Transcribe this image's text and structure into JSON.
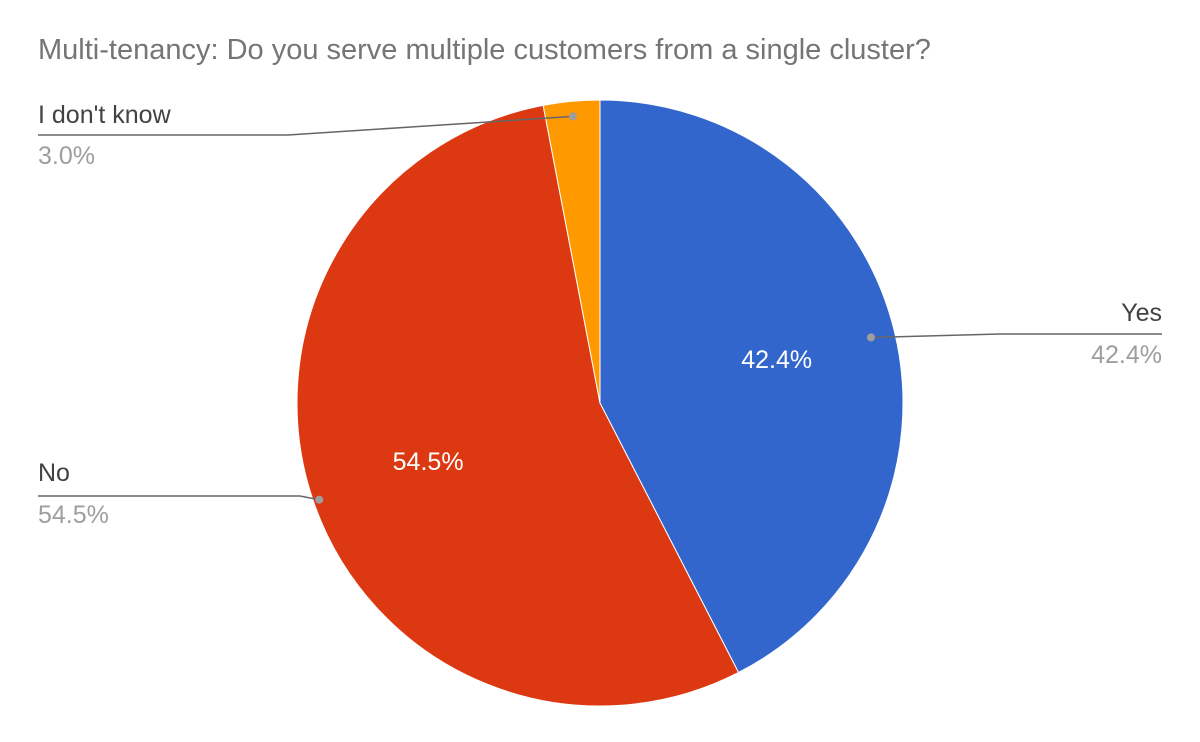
{
  "chart_data": {
    "type": "pie",
    "title": "Multi-tenancy: Do you serve multiple customers from a single cluster?",
    "slices": [
      {
        "label": "Yes",
        "value": 42.4,
        "display": "42.4%",
        "color": "#3366cc",
        "inner_label": true
      },
      {
        "label": "No",
        "value": 54.5,
        "display": "54.5%",
        "color": "#dc3912",
        "inner_label": true
      },
      {
        "label": "I don't know",
        "value": 3.0,
        "display": "3.0%",
        "color": "#ff9900",
        "inner_label": false
      }
    ],
    "start_angle_deg": 0,
    "direction": "clockwise",
    "legend": "labeled callouts"
  }
}
